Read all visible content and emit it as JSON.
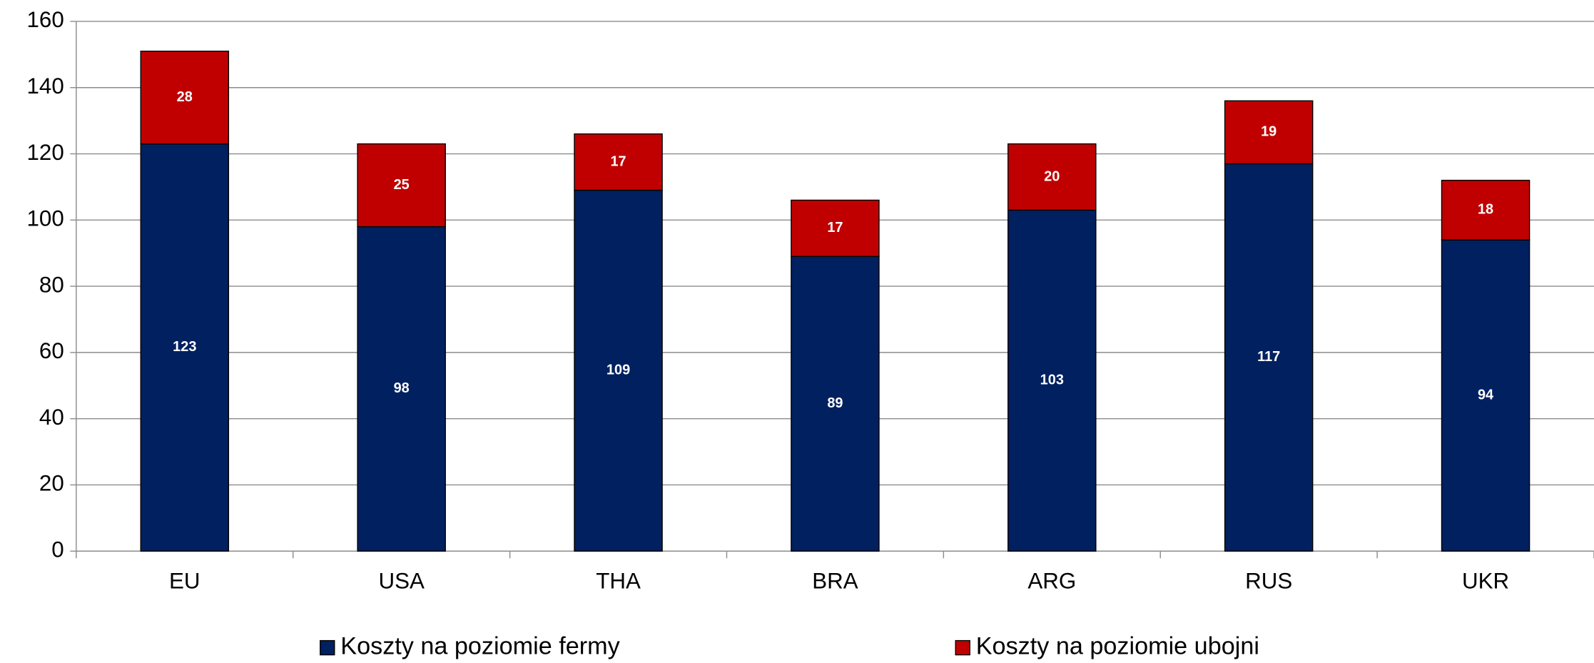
{
  "chart_data": {
    "type": "stacked_bar",
    "categories": [
      "EU",
      "USA",
      "THA",
      "BRA",
      "ARG",
      "RUS",
      "UKR"
    ],
    "series": [
      {
        "name": "Koszty na poziomie fermy",
        "color": "#002060",
        "values": [
          123,
          98,
          109,
          89,
          103,
          117,
          94
        ]
      },
      {
        "name": "Koszty na poziomie ubojni",
        "color": "#c00000",
        "values": [
          28,
          25,
          17,
          17,
          20,
          19,
          18
        ]
      }
    ],
    "ylim": [
      0,
      160
    ],
    "yticks": [
      0,
      20,
      40,
      60,
      80,
      100,
      120,
      140,
      160
    ],
    "grid": true,
    "legend": "bottom"
  }
}
